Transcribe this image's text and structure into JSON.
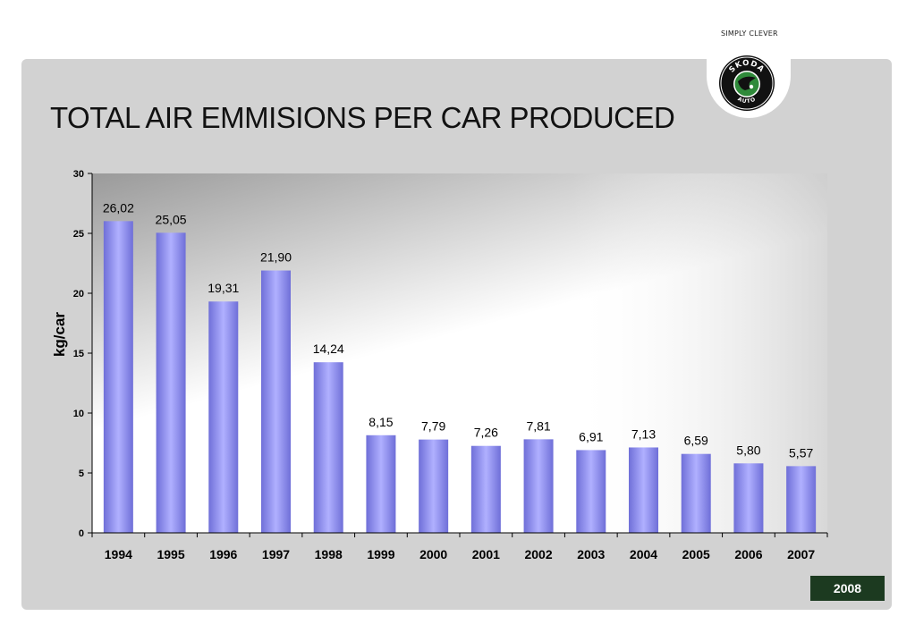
{
  "header": {
    "tagline": "SIMPLY CLEVER",
    "logo": {
      "top_text": "SKODA",
      "bottom_text": "AUTO",
      "icon": "skoda-winged-arrow-logo"
    }
  },
  "slide": {
    "title": "TOTAL AIR EMMISIONS PER CAR PRODUCED",
    "year_badge": "2008"
  },
  "colors": {
    "panel": "#d2d2d2",
    "bar_edge": "#6f6fd8",
    "bar_center": "#b0b0ff",
    "badge": "#1c3a20"
  },
  "chart_data": {
    "type": "bar",
    "title": "",
    "xlabel": "",
    "ylabel": "kg/car",
    "categories": [
      "1994",
      "1995",
      "1996",
      "1997",
      "1998",
      "1999",
      "2000",
      "2001",
      "2002",
      "2003",
      "2004",
      "2005",
      "2006",
      "2007"
    ],
    "values": [
      26.02,
      25.05,
      19.31,
      21.9,
      14.24,
      8.15,
      7.79,
      7.26,
      7.81,
      6.91,
      7.13,
      6.59,
      5.8,
      5.57
    ],
    "value_labels": [
      "26,02",
      "25,05",
      "19,31",
      "21,90",
      "14,24",
      "8,15",
      "7,79",
      "7,26",
      "7,81",
      "6,91",
      "7,13",
      "6,59",
      "5,80",
      "5,57"
    ],
    "yticks": [
      0,
      5,
      10,
      15,
      20,
      25,
      30
    ],
    "ylim": [
      0,
      30
    ],
    "grid": false,
    "legend": "none"
  }
}
